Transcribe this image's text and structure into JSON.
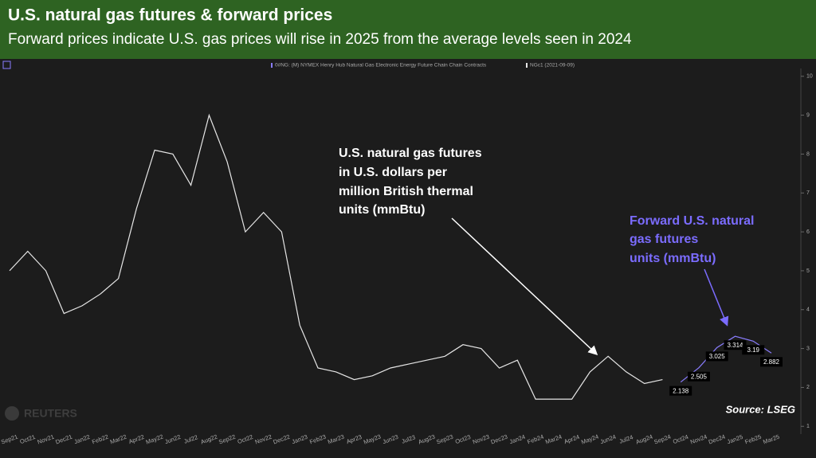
{
  "chart_data": {
    "type": "line",
    "title": "U.S. natural gas futures & forward prices",
    "subtitle": "Forward prices indicate U.S. gas prices will rise in 2025 from the average levels seen in 2024",
    "legend_items": [
      "0#NG: (M) NYMEX Henry Hub Natural Gas Electronic Energy Future Chain Chain Contracts",
      "NGc1 (2021-09-09)"
    ],
    "categories": [
      "Sep21",
      "Oct21",
      "Nov21",
      "Dec21",
      "Jan22",
      "Feb22",
      "Mar22",
      "Apr22",
      "May22",
      "Jun22",
      "Jul22",
      "Aug22",
      "Sep22",
      "Oct22",
      "Nov22",
      "Dec22",
      "Jan23",
      "Feb23",
      "Mar23",
      "Apr23",
      "May23",
      "Jun23",
      "Jul23",
      "Aug23",
      "Sep23",
      "Oct23",
      "Nov23",
      "Dec23",
      "Jan24",
      "Feb24",
      "Mar24",
      "Apr24",
      "May24",
      "Jun24",
      "Jul24",
      "Aug24",
      "Sep24",
      "Oct24",
      "Nov24",
      "Dec24",
      "Jan25",
      "Feb25",
      "Mar25"
    ],
    "series": [
      {
        "name": "NGc1 (2021-09-09)",
        "color": "#e6e6e6",
        "values": [
          5.0,
          5.5,
          5.0,
          3.9,
          4.1,
          4.4,
          4.8,
          6.6,
          8.1,
          8.0,
          7.2,
          9.0,
          7.8,
          6.0,
          6.5,
          6.0,
          3.6,
          2.5,
          2.4,
          2.2,
          2.3,
          2.5,
          2.6,
          2.7,
          2.8,
          3.1,
          3.0,
          2.5,
          2.7,
          1.7,
          1.7,
          1.7,
          2.4,
          2.8,
          2.4,
          2.1,
          2.2,
          null,
          null,
          null,
          null,
          null,
          null
        ]
      },
      {
        "name": "0#NG: (M) NYMEX Henry Hub Natural Gas Electronic Energy Future Chain Chain Contracts",
        "color": "#8a7dff",
        "values": [
          null,
          null,
          null,
          null,
          null,
          null,
          null,
          null,
          null,
          null,
          null,
          null,
          null,
          null,
          null,
          null,
          null,
          null,
          null,
          null,
          null,
          null,
          null,
          null,
          null,
          null,
          null,
          null,
          null,
          null,
          null,
          null,
          null,
          null,
          null,
          null,
          null,
          2.138,
          2.505,
          3.025,
          3.314,
          3.19,
          2.882
        ]
      }
    ],
    "ylim": [
      0.8,
      10.2
    ],
    "yticks": [
      1,
      2,
      3,
      4,
      5,
      6,
      7,
      8,
      9,
      10
    ],
    "annotations": [
      "U.S. natural gas futures",
      "in U.S. dollars per",
      "million British thermal",
      "units (mmBtu)",
      "Forward U.S. natural",
      "gas futures",
      "units (mmBtu)"
    ],
    "source": "Source: LSEG",
    "watermark": "REUTERS"
  }
}
